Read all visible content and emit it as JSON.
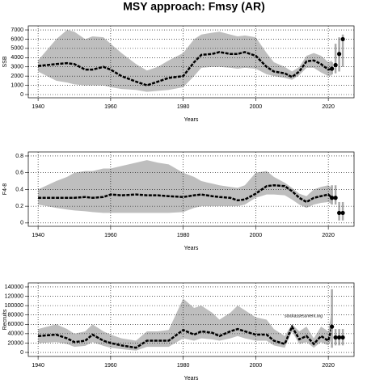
{
  "title": "MSY approach: Fmsy (AR)",
  "chart_data": [
    {
      "type": "line",
      "xlabel": "Years",
      "ylabel": "SSB",
      "grid": true,
      "band_color": "#bebebe",
      "color": "#000000",
      "xlim": [
        1937.3,
        2027.1
      ],
      "xticks": [
        1940,
        1960,
        1980,
        2000,
        2020
      ],
      "ylim": [
        -350,
        7440
      ],
      "yticks": [
        0,
        1000,
        2000,
        3000,
        4000,
        5000,
        6000,
        7000
      ],
      "x": [
        1940,
        1945,
        1948,
        1950,
        1953,
        1955,
        1958,
        1960,
        1963,
        1967,
        1970,
        1973,
        1976,
        1980,
        1983,
        1985,
        1988,
        1990,
        1993,
        1995,
        1997,
        2000,
        2003,
        2005,
        2008,
        2010,
        2012,
        2014,
        2016,
        2018,
        2020,
        2021
      ],
      "values": [
        3100,
        3300,
        3400,
        3300,
        2700,
        2700,
        3000,
        2700,
        2000,
        1400,
        1000,
        1400,
        1800,
        2000,
        3500,
        4300,
        4400,
        4600,
        4400,
        4400,
        4600,
        4200,
        3000,
        2500,
        2300,
        1900,
        2500,
        3600,
        3700,
        3300,
        2700,
        2800
      ],
      "upper": [
        3700,
        6000,
        7000,
        6800,
        6000,
        6300,
        6200,
        5500,
        4500,
        3300,
        2600,
        3000,
        3700,
        4500,
        6000,
        6500,
        6700,
        6800,
        6500,
        6300,
        6400,
        6200,
        4500,
        3500,
        3000,
        2500,
        3000,
        4200,
        4500,
        4200,
        3500,
        3700
      ],
      "lower": [
        2500,
        1500,
        1300,
        1100,
        1000,
        1000,
        1000,
        800,
        600,
        500,
        300,
        400,
        500,
        800,
        2000,
        2900,
        3000,
        3000,
        2900,
        2800,
        2900,
        2800,
        2200,
        2000,
        1800,
        1600,
        2100,
        2900,
        2900,
        2400,
        2000,
        2100
      ],
      "projection": {
        "x": [
          2021,
          2022,
          2023,
          2024
        ],
        "values": [
          2800,
          3200,
          4400,
          6000
        ],
        "lower": [
          2200,
          2300,
          2500,
          3000
        ],
        "upper": [
          3500,
          5500,
          6200,
          6500
        ]
      }
    },
    {
      "type": "line",
      "xlabel": "Years",
      "ylabel": "F4-8",
      "grid": true,
      "band_color": "#bebebe",
      "color": "#000000",
      "xlim": [
        1937.3,
        2027.1
      ],
      "xticks": [
        1940,
        1960,
        1980,
        2000,
        2020
      ],
      "ylim": [
        -0.04,
        0.848
      ],
      "yticks": [
        0,
        0.2,
        0.4,
        0.6,
        0.8
      ],
      "x": [
        1940,
        1945,
        1948,
        1950,
        1953,
        1955,
        1958,
        1960,
        1963,
        1967,
        1970,
        1973,
        1976,
        1980,
        1983,
        1985,
        1988,
        1990,
        1993,
        1995,
        1997,
        2000,
        2003,
        2005,
        2008,
        2010,
        2012,
        2014,
        2016,
        2018,
        2020,
        2021
      ],
      "values": [
        0.3,
        0.3,
        0.3,
        0.3,
        0.31,
        0.3,
        0.31,
        0.34,
        0.33,
        0.34,
        0.33,
        0.33,
        0.32,
        0.31,
        0.33,
        0.34,
        0.32,
        0.31,
        0.3,
        0.27,
        0.28,
        0.35,
        0.44,
        0.45,
        0.44,
        0.38,
        0.3,
        0.25,
        0.3,
        0.32,
        0.34,
        0.3
      ],
      "upper": [
        0.4,
        0.5,
        0.55,
        0.6,
        0.62,
        0.62,
        0.65,
        0.65,
        0.68,
        0.72,
        0.75,
        0.72,
        0.7,
        0.6,
        0.55,
        0.5,
        0.47,
        0.45,
        0.43,
        0.42,
        0.45,
        0.6,
        0.62,
        0.55,
        0.48,
        0.42,
        0.35,
        0.32,
        0.4,
        0.43,
        0.45,
        0.42
      ],
      "lower": [
        0.22,
        0.18,
        0.16,
        0.15,
        0.14,
        0.13,
        0.12,
        0.12,
        0.12,
        0.12,
        0.12,
        0.12,
        0.12,
        0.13,
        0.18,
        0.2,
        0.2,
        0.2,
        0.2,
        0.2,
        0.22,
        0.3,
        0.34,
        0.34,
        0.33,
        0.28,
        0.22,
        0.18,
        0.22,
        0.24,
        0.25,
        0.22
      ],
      "projection": {
        "x": [
          2021,
          2022,
          2023,
          2024
        ],
        "values": [
          0.3,
          0.3,
          0.12,
          0.12
        ],
        "lower": [
          0.22,
          0.22,
          0.03,
          0.03
        ],
        "upper": [
          0.45,
          0.45,
          0.25,
          0.25
        ]
      }
    },
    {
      "type": "line",
      "xlabel": "Years",
      "ylabel": "Recruits",
      "grid": true,
      "band_color": "#bebebe",
      "color": "#000000",
      "annotation": "stockassessment.org",
      "xlim": [
        1937.3,
        2027.1
      ],
      "xticks": [
        1940,
        1960,
        1980,
        2000,
        2020
      ],
      "ylim": [
        -8600,
        148600
      ],
      "yticks": [
        0,
        20000,
        40000,
        60000,
        80000,
        100000,
        120000,
        140000
      ],
      "x": [
        1940,
        1945,
        1948,
        1950,
        1953,
        1955,
        1958,
        1960,
        1963,
        1967,
        1970,
        1973,
        1976,
        1980,
        1983,
        1985,
        1988,
        1990,
        1993,
        1995,
        1997,
        2000,
        2003,
        2005,
        2008,
        2010,
        2012,
        2014,
        2016,
        2018,
        2020,
        2021
      ],
      "values": [
        35000,
        38000,
        30000,
        22000,
        25000,
        38000,
        25000,
        20000,
        15000,
        10000,
        25000,
        25000,
        25000,
        48000,
        38000,
        45000,
        42000,
        35000,
        45000,
        50000,
        45000,
        38000,
        38000,
        25000,
        18000,
        55000,
        28000,
        35000,
        18000,
        35000,
        25000,
        55000
      ],
      "upper": [
        50000,
        60000,
        50000,
        40000,
        45000,
        60000,
        45000,
        38000,
        30000,
        25000,
        45000,
        45000,
        48000,
        115000,
        95000,
        100000,
        85000,
        70000,
        85000,
        100000,
        90000,
        75000,
        70000,
        50000,
        35000,
        60000,
        45000,
        55000,
        30000,
        55000,
        45000,
        90000
      ],
      "lower": [
        20000,
        22000,
        18000,
        12000,
        14000,
        22000,
        14000,
        10000,
        7000,
        4000,
        12000,
        12000,
        12000,
        30000,
        25000,
        30000,
        28000,
        25000,
        30000,
        35000,
        30000,
        25000,
        25000,
        15000,
        10000,
        45000,
        18000,
        22000,
        10000,
        22000,
        15000,
        30000
      ],
      "projection": {
        "x": [
          2021,
          2022,
          2023,
          2024
        ],
        "values": [
          55000,
          32000,
          32000,
          32000
        ],
        "lower": [
          10000,
          15000,
          15000,
          15000
        ],
        "upper": [
          135000,
          50000,
          50000,
          50000
        ]
      }
    }
  ]
}
